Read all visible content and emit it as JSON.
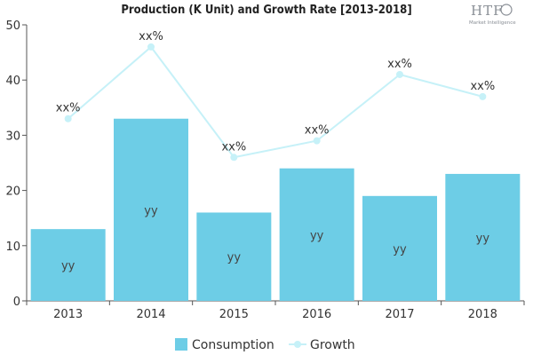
{
  "chart_data": {
    "type": "bar",
    "title": "Production (K Unit) and Growth Rate [2013-2018]",
    "categories": [
      "2013",
      "2014",
      "2015",
      "2016",
      "2017",
      "2018"
    ],
    "ylim": [
      0,
      50
    ],
    "yticks": [
      0,
      10,
      20,
      30,
      40,
      50
    ],
    "series": [
      {
        "name": "Consumption",
        "type": "bar",
        "values": [
          13,
          33,
          16,
          24,
          19,
          23
        ],
        "labels": [
          "yy",
          "yy",
          "yy",
          "yy",
          "yy",
          "yy"
        ],
        "color": "#6dcde6"
      },
      {
        "name": "Growth",
        "type": "line",
        "values": [
          33,
          46,
          26,
          29,
          41,
          37
        ],
        "labels": [
          "xx%",
          "xx%",
          "xx%",
          "xx%",
          "xx%",
          "xx%"
        ],
        "color": "#c6f1f8"
      }
    ],
    "xlabel": "",
    "ylabel": "",
    "grid": false,
    "legend_position": "bottom"
  },
  "logo": {
    "main": "HTF",
    "sub": "Market Intelligence",
    "color": "#8a8f96"
  }
}
